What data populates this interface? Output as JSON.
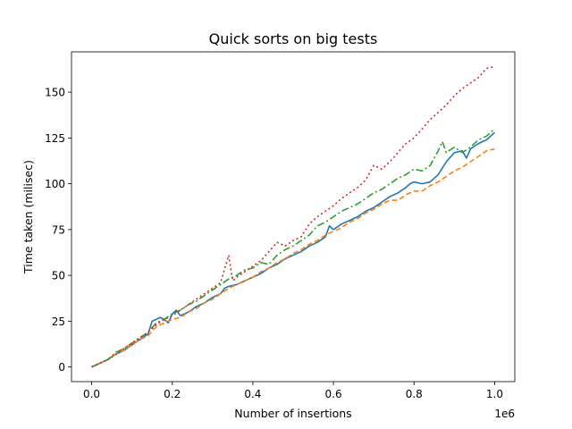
{
  "chart_data": {
    "type": "line",
    "title": "Quick sorts on big tests",
    "xlabel": "Number of insertions",
    "ylabel": "Time taken (milisec)",
    "x_offset_label": "1e6",
    "xlim": [
      -0.05,
      1.05
    ],
    "ylim": [
      -8,
      172
    ],
    "x_ticks": [
      0.0,
      0.2,
      0.4,
      0.6,
      0.8,
      1.0
    ],
    "x_tick_labels": [
      "0.0",
      "0.2",
      "0.4",
      "0.6",
      "0.8",
      "1.0"
    ],
    "y_ticks": [
      0,
      25,
      50,
      75,
      100,
      125,
      150
    ],
    "y_tick_labels": [
      "0",
      "25",
      "50",
      "75",
      "100",
      "125",
      "150"
    ],
    "grid": false,
    "legend": "none",
    "series": [
      {
        "color": "#1f77b4",
        "dash": "solid",
        "points": [
          [
            0.0,
            0
          ],
          [
            0.02,
            2
          ],
          [
            0.04,
            4
          ],
          [
            0.06,
            7
          ],
          [
            0.08,
            9
          ],
          [
            0.1,
            12
          ],
          [
            0.12,
            15
          ],
          [
            0.14,
            18
          ],
          [
            0.15,
            25
          ],
          [
            0.16,
            26
          ],
          [
            0.17,
            27
          ],
          [
            0.18,
            26
          ],
          [
            0.19,
            24
          ],
          [
            0.2,
            29
          ],
          [
            0.21,
            31
          ],
          [
            0.22,
            28
          ],
          [
            0.24,
            30
          ],
          [
            0.26,
            33
          ],
          [
            0.28,
            35
          ],
          [
            0.3,
            38
          ],
          [
            0.32,
            40
          ],
          [
            0.33,
            43
          ],
          [
            0.34,
            44
          ],
          [
            0.36,
            45
          ],
          [
            0.38,
            47
          ],
          [
            0.4,
            49
          ],
          [
            0.42,
            51
          ],
          [
            0.44,
            54
          ],
          [
            0.46,
            56
          ],
          [
            0.48,
            59
          ],
          [
            0.5,
            61
          ],
          [
            0.52,
            63
          ],
          [
            0.54,
            66
          ],
          [
            0.56,
            68
          ],
          [
            0.58,
            71
          ],
          [
            0.59,
            77
          ],
          [
            0.6,
            75
          ],
          [
            0.62,
            78
          ],
          [
            0.64,
            80
          ],
          [
            0.66,
            82
          ],
          [
            0.68,
            85
          ],
          [
            0.7,
            87
          ],
          [
            0.72,
            90
          ],
          [
            0.74,
            93
          ],
          [
            0.76,
            95
          ],
          [
            0.78,
            98
          ],
          [
            0.79,
            100
          ],
          [
            0.8,
            101
          ],
          [
            0.82,
            100
          ],
          [
            0.84,
            101
          ],
          [
            0.86,
            105
          ],
          [
            0.88,
            112
          ],
          [
            0.9,
            117
          ],
          [
            0.92,
            118
          ],
          [
            0.93,
            114
          ],
          [
            0.94,
            119
          ],
          [
            0.96,
            122
          ],
          [
            0.98,
            124
          ],
          [
            1.0,
            128
          ]
        ]
      },
      {
        "color": "#ff7f0e",
        "dash": "dashed",
        "points": [
          [
            0.0,
            0
          ],
          [
            0.02,
            2
          ],
          [
            0.04,
            4
          ],
          [
            0.06,
            7
          ],
          [
            0.08,
            9
          ],
          [
            0.1,
            12
          ],
          [
            0.12,
            15
          ],
          [
            0.14,
            17
          ],
          [
            0.16,
            22
          ],
          [
            0.18,
            24
          ],
          [
            0.2,
            26
          ],
          [
            0.22,
            27
          ],
          [
            0.24,
            30
          ],
          [
            0.26,
            32
          ],
          [
            0.28,
            35
          ],
          [
            0.3,
            37
          ],
          [
            0.32,
            40
          ],
          [
            0.34,
            43
          ],
          [
            0.36,
            45
          ],
          [
            0.38,
            47
          ],
          [
            0.4,
            49
          ],
          [
            0.42,
            52
          ],
          [
            0.44,
            54
          ],
          [
            0.46,
            57
          ],
          [
            0.48,
            59
          ],
          [
            0.5,
            62
          ],
          [
            0.52,
            64
          ],
          [
            0.54,
            67
          ],
          [
            0.56,
            69
          ],
          [
            0.58,
            72
          ],
          [
            0.6,
            74
          ],
          [
            0.62,
            76
          ],
          [
            0.64,
            79
          ],
          [
            0.66,
            81
          ],
          [
            0.68,
            84
          ],
          [
            0.7,
            86
          ],
          [
            0.72,
            89
          ],
          [
            0.74,
            91
          ],
          [
            0.76,
            91
          ],
          [
            0.78,
            94
          ],
          [
            0.8,
            96
          ],
          [
            0.82,
            96
          ],
          [
            0.84,
            99
          ],
          [
            0.86,
            101
          ],
          [
            0.88,
            104
          ],
          [
            0.9,
            107
          ],
          [
            0.92,
            109
          ],
          [
            0.94,
            112
          ],
          [
            0.96,
            115
          ],
          [
            0.98,
            118
          ],
          [
            1.0,
            119
          ]
        ]
      },
      {
        "color": "#2ca02c",
        "dash": "dashdot",
        "points": [
          [
            0.0,
            0
          ],
          [
            0.02,
            2
          ],
          [
            0.04,
            4
          ],
          [
            0.06,
            8
          ],
          [
            0.08,
            10
          ],
          [
            0.1,
            13
          ],
          [
            0.12,
            16
          ],
          [
            0.14,
            19
          ],
          [
            0.16,
            24
          ],
          [
            0.18,
            26
          ],
          [
            0.2,
            29
          ],
          [
            0.22,
            31
          ],
          [
            0.24,
            34
          ],
          [
            0.26,
            36
          ],
          [
            0.28,
            39
          ],
          [
            0.3,
            42
          ],
          [
            0.32,
            45
          ],
          [
            0.34,
            48
          ],
          [
            0.36,
            50
          ],
          [
            0.38,
            53
          ],
          [
            0.4,
            54
          ],
          [
            0.42,
            57
          ],
          [
            0.44,
            56
          ],
          [
            0.46,
            61
          ],
          [
            0.48,
            64
          ],
          [
            0.5,
            66
          ],
          [
            0.52,
            69
          ],
          [
            0.54,
            72
          ],
          [
            0.56,
            77
          ],
          [
            0.58,
            79
          ],
          [
            0.6,
            82
          ],
          [
            0.62,
            85
          ],
          [
            0.64,
            87
          ],
          [
            0.66,
            89
          ],
          [
            0.68,
            92
          ],
          [
            0.7,
            95
          ],
          [
            0.72,
            97
          ],
          [
            0.74,
            100
          ],
          [
            0.76,
            103
          ],
          [
            0.78,
            105
          ],
          [
            0.8,
            108
          ],
          [
            0.82,
            107
          ],
          [
            0.84,
            110
          ],
          [
            0.86,
            118
          ],
          [
            0.87,
            123
          ],
          [
            0.88,
            117
          ],
          [
            0.9,
            120
          ],
          [
            0.92,
            117
          ],
          [
            0.94,
            120
          ],
          [
            0.96,
            124
          ],
          [
            0.98,
            126
          ],
          [
            1.0,
            130
          ]
        ]
      },
      {
        "color": "#d62728",
        "dash": "dotted",
        "points": [
          [
            0.0,
            0
          ],
          [
            0.02,
            2
          ],
          [
            0.04,
            4
          ],
          [
            0.06,
            7
          ],
          [
            0.08,
            10
          ],
          [
            0.1,
            13
          ],
          [
            0.12,
            16
          ],
          [
            0.14,
            19
          ],
          [
            0.16,
            23
          ],
          [
            0.18,
            26
          ],
          [
            0.2,
            28
          ],
          [
            0.22,
            31
          ],
          [
            0.24,
            34
          ],
          [
            0.26,
            37
          ],
          [
            0.28,
            40
          ],
          [
            0.3,
            43
          ],
          [
            0.32,
            46
          ],
          [
            0.34,
            61
          ],
          [
            0.35,
            47
          ],
          [
            0.36,
            49
          ],
          [
            0.38,
            52
          ],
          [
            0.4,
            55
          ],
          [
            0.42,
            58
          ],
          [
            0.44,
            63
          ],
          [
            0.46,
            68
          ],
          [
            0.48,
            66
          ],
          [
            0.5,
            69
          ],
          [
            0.52,
            71
          ],
          [
            0.54,
            78
          ],
          [
            0.56,
            82
          ],
          [
            0.58,
            85
          ],
          [
            0.6,
            88
          ],
          [
            0.62,
            92
          ],
          [
            0.64,
            95
          ],
          [
            0.66,
            98
          ],
          [
            0.68,
            102
          ],
          [
            0.7,
            110
          ],
          [
            0.72,
            108
          ],
          [
            0.74,
            112
          ],
          [
            0.76,
            117
          ],
          [
            0.78,
            122
          ],
          [
            0.8,
            125
          ],
          [
            0.82,
            130
          ],
          [
            0.84,
            135
          ],
          [
            0.86,
            139
          ],
          [
            0.88,
            143
          ],
          [
            0.9,
            148
          ],
          [
            0.92,
            152
          ],
          [
            0.94,
            155
          ],
          [
            0.96,
            158
          ],
          [
            0.98,
            163
          ],
          [
            1.0,
            164
          ]
        ]
      }
    ]
  }
}
